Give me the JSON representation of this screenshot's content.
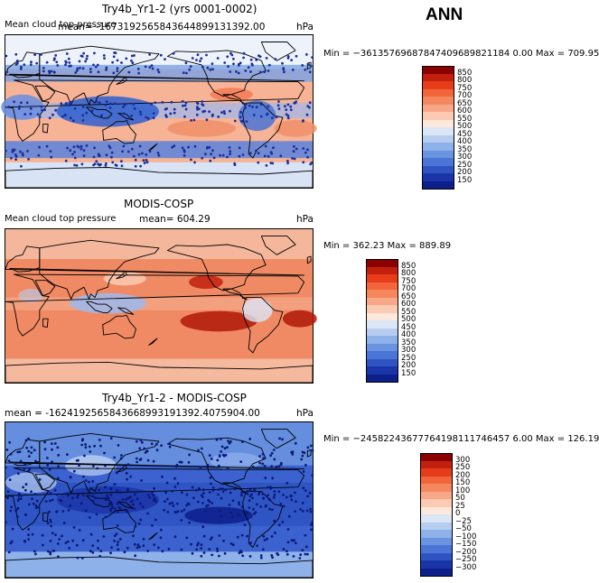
{
  "season": "ANN",
  "colors": {
    "ocean_red": "#ef8f6a",
    "ocean_blue": "#4a78d8",
    "dark_blue": "#1a2f9a",
    "dark_red": "#8b0000",
    "coast": "#000000"
  },
  "chart_data": [
    {
      "type": "heatmap",
      "title": "Try4b_Yr1-2 (yrs 0001-0002)",
      "field_label": "Mean cloud top pressure",
      "mean_text": "mean= -1673192565843644899131392.00",
      "units": "hPa",
      "minmax_text": "Min = −36135769687847409689821184 0.00  Max = 709.95",
      "colorbar_levels": [
        "850",
        "800",
        "750",
        "700",
        "650",
        "600",
        "550",
        "500",
        "450",
        "400",
        "350",
        "300",
        "250",
        "200",
        "150"
      ],
      "colorbar_colors": [
        "#8b0000",
        "#c1200e",
        "#e63c1a",
        "#f2643a",
        "#f5875e",
        "#f8a888",
        "#fbcab2",
        "#fde8dc",
        "#dbe6f6",
        "#b6cdf0",
        "#8fb1ea",
        "#6a93e0",
        "#4a74d6",
        "#2f54c2",
        "#1a35a8",
        "#0c1f8a"
      ]
    },
    {
      "type": "heatmap",
      "title": "MODIS-COSP",
      "field_label": "Mean cloud top pressure",
      "mean_text": "mean= 604.29",
      "units": "hPa",
      "minmax_text": "Min = 362.23  Max = 889.89",
      "colorbar_levels": [
        "850",
        "800",
        "750",
        "700",
        "650",
        "600",
        "550",
        "500",
        "450",
        "400",
        "350",
        "300",
        "250",
        "200",
        "150"
      ],
      "colorbar_colors": [
        "#8b0000",
        "#c1200e",
        "#e63c1a",
        "#f2643a",
        "#f5875e",
        "#f8a888",
        "#fbcab2",
        "#fde8dc",
        "#dbe6f6",
        "#b6cdf0",
        "#8fb1ea",
        "#6a93e0",
        "#4a74d6",
        "#2f54c2",
        "#1a35a8",
        "#0c1f8a"
      ]
    },
    {
      "type": "heatmap",
      "title": "Try4b_Yr1-2 - MODIS-COSP",
      "field_label": "",
      "mean_text": "mean = -1624192565843668993191392.4075904.00",
      "units": "hPa",
      "minmax_text": "Min = −24582243677764198111746457 6.00  Max = 126.19",
      "colorbar_levels": [
        "300",
        "250",
        "200",
        "150",
        "100",
        "50",
        "25",
        "0",
        "−25",
        "−50",
        "−100",
        "−150",
        "−200",
        "−250",
        "−300"
      ],
      "colorbar_colors": [
        "#8b0000",
        "#c1200e",
        "#e63c1a",
        "#f2643a",
        "#f5875e",
        "#f8a888",
        "#fbcab2",
        "#fde8dc",
        "#dbe6f6",
        "#b6cdf0",
        "#8fb1ea",
        "#6a93e0",
        "#4a74d6",
        "#2f54c2",
        "#1a35a8",
        "#0c1f8a"
      ]
    }
  ]
}
